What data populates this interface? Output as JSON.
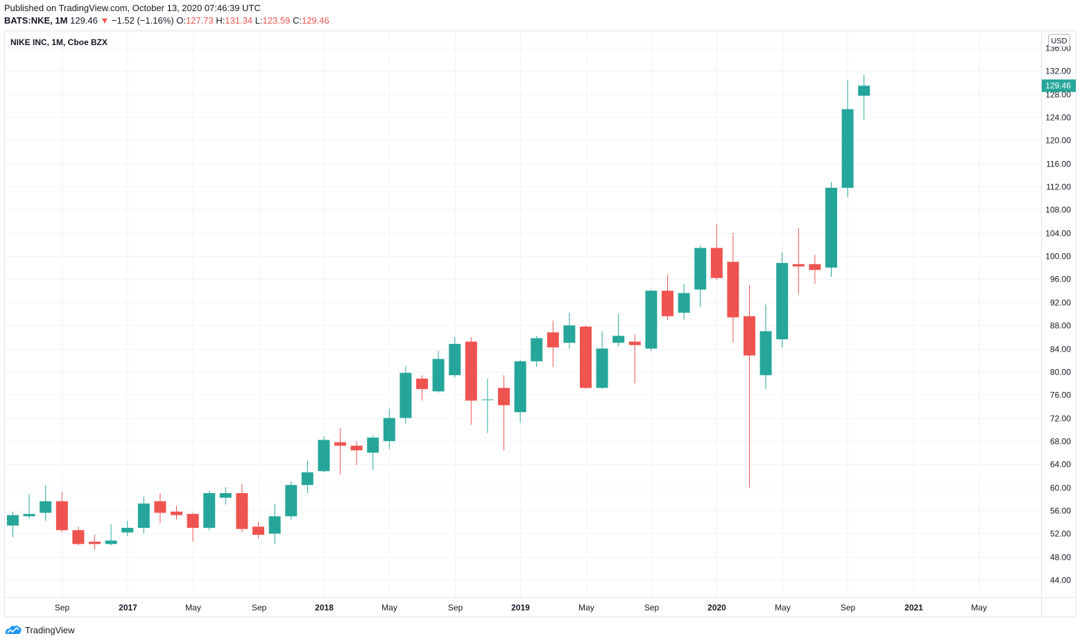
{
  "header": {
    "published": "Published on TradingView.com, October 13, 2020 07:46:39 UTC",
    "symbol": "BATS:NKE, 1M",
    "last": "129.46",
    "change": "−1.52 (−1.16%)",
    "o_label": "O:",
    "o_value": "127.73",
    "h_label": "H:",
    "h_value": "131.34",
    "l_label": "L:",
    "l_value": "123.59",
    "c_label": "C:",
    "c_value": "129.46"
  },
  "footer": {
    "brand": "TradingView",
    "logo_icon": "tradingview-logo-icon"
  },
  "colors": {
    "up": "#26a69a",
    "down": "#ef5350",
    "grid": "#f0f3fa",
    "axis_text": "#131722"
  },
  "chart_data": {
    "type": "candlestick",
    "title": "NIKE INC, 1M, Cboe BZX",
    "currency": "USD",
    "last_price_label": "129.46",
    "ylim": [
      41.0,
      139.0
    ],
    "y_ticks": [
      44,
      48,
      52,
      56,
      60,
      64,
      68,
      72,
      76,
      80,
      84,
      88,
      92,
      96,
      100,
      104,
      108,
      112,
      116,
      120,
      124,
      128,
      132,
      136
    ],
    "y_tick_labels": [
      "44.00",
      "48.00",
      "52.00",
      "56.00",
      "60.00",
      "64.00",
      "68.00",
      "72.00",
      "76.00",
      "80.00",
      "84.00",
      "88.00",
      "92.00",
      "96.00",
      "100.00",
      "104.00",
      "108.00",
      "112.00",
      "116.00",
      "120.00",
      "124.00",
      "128.00",
      "132.00",
      "136.00"
    ],
    "x_ticks": [
      {
        "label": "Sep",
        "month": "2016-09"
      },
      {
        "label": "2017",
        "month": "2017-01"
      },
      {
        "label": "May",
        "month": "2017-05"
      },
      {
        "label": "Sep",
        "month": "2017-09"
      },
      {
        "label": "2018",
        "month": "2018-01"
      },
      {
        "label": "May",
        "month": "2018-05"
      },
      {
        "label": "Sep",
        "month": "2018-09"
      },
      {
        "label": "2019",
        "month": "2019-01"
      },
      {
        "label": "May",
        "month": "2019-05"
      },
      {
        "label": "Sep",
        "month": "2019-09"
      },
      {
        "label": "2020",
        "month": "2020-01"
      },
      {
        "label": "May",
        "month": "2020-05"
      },
      {
        "label": "Sep",
        "month": "2020-09"
      },
      {
        "label": "2021",
        "month": "2021-01"
      },
      {
        "label": "May",
        "month": "2021-05"
      }
    ],
    "columns": [
      "month",
      "open",
      "high",
      "low",
      "close"
    ],
    "candles": [
      [
        "2016-06",
        53.4,
        55.8,
        51.4,
        55.2
      ],
      [
        "2016-07",
        55.0,
        58.8,
        54.6,
        55.4
      ],
      [
        "2016-08",
        55.6,
        60.4,
        54.2,
        57.6
      ],
      [
        "2016-09",
        57.6,
        59.2,
        52.2,
        52.6
      ],
      [
        "2016-10",
        52.6,
        53.2,
        50.0,
        50.2
      ],
      [
        "2016-11",
        50.6,
        51.8,
        49.2,
        50.2
      ],
      [
        "2016-12",
        50.2,
        53.6,
        50.0,
        50.8
      ],
      [
        "2017-01",
        52.2,
        54.2,
        51.6,
        53.0
      ],
      [
        "2017-02",
        53.0,
        58.4,
        52.0,
        57.2
      ],
      [
        "2017-03",
        57.6,
        59.0,
        53.8,
        55.6
      ],
      [
        "2017-04",
        55.8,
        56.8,
        54.4,
        55.2
      ],
      [
        "2017-05",
        55.4,
        55.6,
        50.6,
        53.0
      ],
      [
        "2017-06",
        53.0,
        59.4,
        52.6,
        59.0
      ],
      [
        "2017-07",
        58.2,
        60.0,
        57.0,
        59.0
      ],
      [
        "2017-08",
        59.0,
        60.6,
        52.2,
        52.8
      ],
      [
        "2017-09",
        53.2,
        54.0,
        51.2,
        51.8
      ],
      [
        "2017-10",
        52.0,
        57.2,
        50.2,
        55.0
      ],
      [
        "2017-11",
        55.0,
        61.0,
        54.4,
        60.4
      ],
      [
        "2017-12",
        60.4,
        64.6,
        59.0,
        62.6
      ],
      [
        "2018-01",
        62.8,
        68.8,
        62.6,
        68.2
      ],
      [
        "2018-02",
        67.8,
        70.2,
        62.2,
        67.2
      ],
      [
        "2018-03",
        67.2,
        68.0,
        63.8,
        66.4
      ],
      [
        "2018-04",
        66.0,
        69.0,
        63.0,
        68.6
      ],
      [
        "2018-05",
        68.0,
        73.6,
        66.6,
        72.0
      ],
      [
        "2018-06",
        72.0,
        81.0,
        71.0,
        79.8
      ],
      [
        "2018-07",
        78.8,
        79.4,
        75.0,
        77.0
      ],
      [
        "2018-08",
        76.6,
        83.6,
        76.4,
        82.2
      ],
      [
        "2018-09",
        79.4,
        86.0,
        79.0,
        84.8
      ],
      [
        "2018-10",
        85.2,
        86.0,
        70.8,
        75.0
      ],
      [
        "2018-11",
        75.2,
        78.8,
        69.4,
        75.2
      ],
      [
        "2018-12",
        77.2,
        79.4,
        66.4,
        74.2
      ],
      [
        "2019-01",
        73.0,
        82.0,
        71.2,
        81.8
      ],
      [
        "2019-02",
        81.8,
        86.2,
        80.8,
        85.8
      ],
      [
        "2019-03",
        86.8,
        88.8,
        80.8,
        84.2
      ],
      [
        "2019-04",
        85.0,
        90.2,
        84.0,
        88.0
      ],
      [
        "2019-05",
        87.8,
        88.0,
        77.0,
        77.2
      ],
      [
        "2019-06",
        77.2,
        87.0,
        77.0,
        84.0
      ],
      [
        "2019-07",
        85.0,
        90.0,
        84.4,
        86.2
      ],
      [
        "2019-08",
        85.2,
        86.4,
        78.0,
        84.6
      ],
      [
        "2019-09",
        84.0,
        94.2,
        83.6,
        94.0
      ],
      [
        "2019-10",
        94.0,
        96.8,
        89.0,
        89.6
      ],
      [
        "2019-11",
        90.2,
        95.2,
        89.0,
        93.6
      ],
      [
        "2019-12",
        94.2,
        101.8,
        91.2,
        101.4
      ],
      [
        "2020-01",
        101.4,
        105.6,
        95.8,
        96.2
      ],
      [
        "2020-02",
        99.0,
        104.0,
        85.0,
        89.4
      ],
      [
        "2020-03",
        89.6,
        95.0,
        60.0,
        82.8
      ],
      [
        "2020-04",
        79.4,
        91.6,
        77.0,
        87.0
      ],
      [
        "2020-05",
        85.6,
        100.6,
        84.2,
        98.8
      ],
      [
        "2020-06",
        98.6,
        104.8,
        93.4,
        98.2
      ],
      [
        "2020-07",
        98.6,
        100.2,
        95.2,
        97.6
      ],
      [
        "2020-08",
        98.0,
        112.8,
        96.4,
        111.8
      ],
      [
        "2020-09",
        111.8,
        130.4,
        110.2,
        125.4
      ],
      [
        "2020-10",
        127.73,
        131.34,
        123.59,
        129.46
      ]
    ]
  }
}
